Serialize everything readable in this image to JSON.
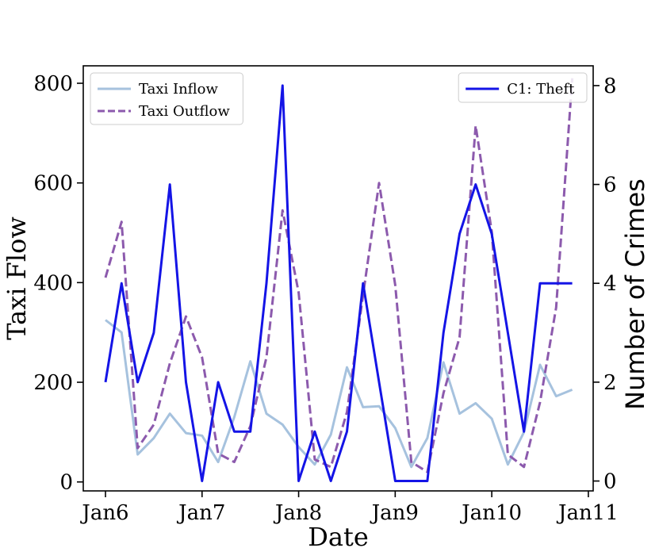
{
  "chart_data": {
    "type": "line",
    "xlabel": "Date",
    "ylabel_left": "Taxi Flow",
    "ylabel_right": "Number of Crimes",
    "x_ticks": [
      "Jan6",
      "Jan7",
      "Jan8",
      "Jan9",
      "Jan10",
      "Jan11"
    ],
    "y_left_ticks": [
      0,
      200,
      400,
      600,
      800
    ],
    "y_right_ticks": [
      0,
      2,
      4,
      6,
      8
    ],
    "ylim_left": [
      -18,
      835
    ],
    "ylim_right": [
      -0.2,
      8.4
    ],
    "xlim_days": [
      -0.23,
      5.05
    ],
    "grid": false,
    "left_series": [
      {
        "name": "Taxi Inflow",
        "color": "#a6c2de",
        "style": "solid",
        "x": [
          0,
          0.1667,
          0.3333,
          0.5,
          0.6667,
          0.8333,
          1.0,
          1.1667,
          1.3333,
          1.5,
          1.6667,
          1.8333,
          2.0,
          2.1667,
          2.3333,
          2.5,
          2.6667,
          2.8333,
          3.0,
          3.1667,
          3.3333,
          3.5,
          3.6667,
          3.8333,
          4.0,
          4.1667,
          4.3333,
          4.5,
          4.6667,
          4.8333
        ],
        "values": [
          325,
          300,
          55,
          88,
          137,
          98,
          93,
          40,
          130,
          242,
          137,
          115,
          70,
          35,
          95,
          230,
          150,
          152,
          108,
          30,
          88,
          240,
          137,
          158,
          127,
          35,
          100,
          235,
          172,
          185
        ]
      },
      {
        "name": "Taxi Outflow",
        "color": "#8c5aad",
        "style": "dashed",
        "x": [
          0,
          0.1667,
          0.3333,
          0.5,
          0.6667,
          0.8333,
          1.0,
          1.1667,
          1.3333,
          1.5,
          1.6667,
          1.8333,
          2.0,
          2.1667,
          2.3333,
          2.5,
          2.6667,
          2.8333,
          3.0,
          3.1667,
          3.3333,
          3.5,
          3.6667,
          3.8333,
          4.0,
          4.1667,
          4.3333,
          4.5,
          4.6667,
          4.8333
        ],
        "values": [
          410,
          522,
          68,
          115,
          238,
          332,
          250,
          57,
          40,
          112,
          250,
          545,
          380,
          45,
          30,
          140,
          375,
          600,
          395,
          40,
          20,
          178,
          290,
          715,
          502,
          55,
          30,
          160,
          350,
          810
        ]
      }
    ],
    "right_series": [
      {
        "name": "C1: Theft",
        "color": "#1414e6",
        "style": "solid",
        "x": [
          0,
          0.1667,
          0.3333,
          0.5,
          0.6667,
          0.8333,
          1.0,
          1.1667,
          1.3333,
          1.5,
          1.6667,
          1.8333,
          2.0,
          2.1667,
          2.3333,
          2.5,
          2.6667,
          2.8333,
          3.0,
          3.1667,
          3.3333,
          3.5,
          3.6667,
          3.8333,
          4.0,
          4.1667,
          4.3333,
          4.5,
          4.6667,
          4.8333
        ],
        "values": [
          2,
          4,
          2,
          3,
          6,
          2,
          0,
          2,
          1,
          1,
          4,
          8,
          0,
          1,
          0,
          1,
          4,
          2,
          0,
          0,
          0,
          3,
          5,
          6,
          5,
          3,
          1,
          4,
          4,
          4
        ]
      }
    ],
    "legend_left_position": "upper-left",
    "legend_right_position": "upper-right"
  }
}
